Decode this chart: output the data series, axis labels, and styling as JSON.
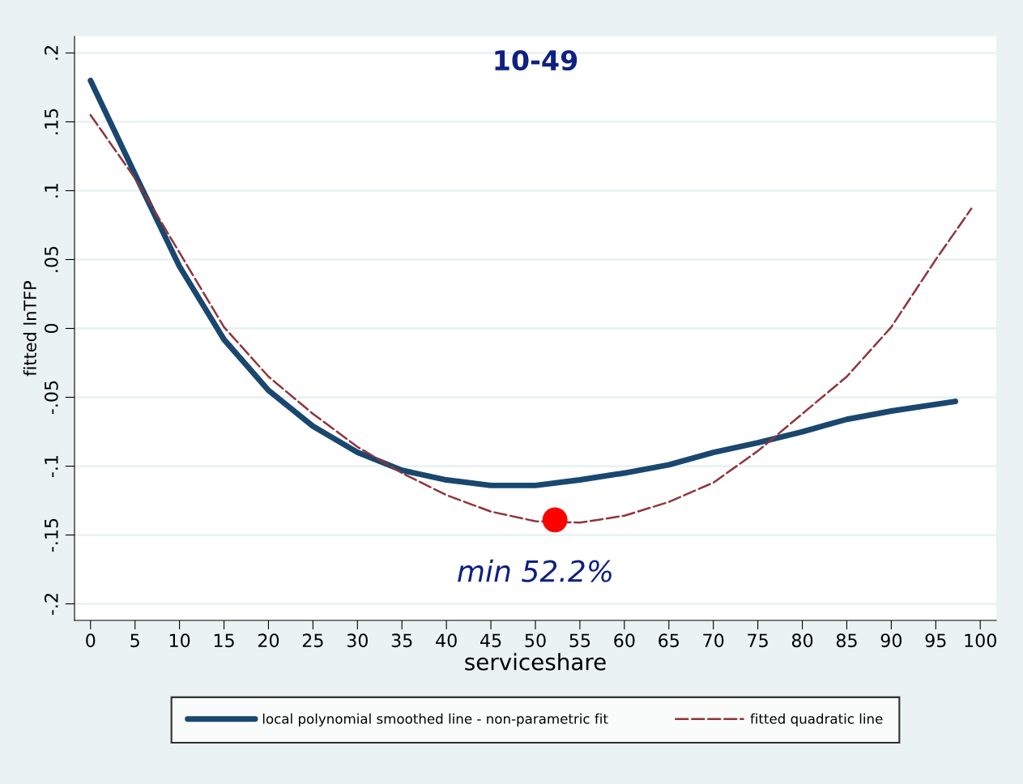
{
  "chart_data": {
    "type": "line",
    "title": "10-49",
    "xlabel": "serviceshare",
    "ylabel": "fitted lnTFP",
    "xlim": [
      -1.8,
      101.8
    ],
    "ylim": [
      -0.212,
      0.212
    ],
    "xticks": [
      0,
      5,
      10,
      15,
      20,
      25,
      30,
      35,
      40,
      45,
      50,
      55,
      60,
      65,
      70,
      75,
      80,
      85,
      90,
      95,
      100
    ],
    "yticks": [
      {
        "value": -0.2,
        "label": "-.2"
      },
      {
        "value": -0.15,
        "label": "-.15"
      },
      {
        "value": -0.1,
        "label": "-.1"
      },
      {
        "value": -0.05,
        "label": "-.05"
      },
      {
        "value": 0,
        "label": "0"
      },
      {
        "value": 0.05,
        "label": ".05"
      },
      {
        "value": 0.1,
        "label": ".1"
      },
      {
        "value": 0.15,
        "label": ".15"
      },
      {
        "value": 0.2,
        "label": ".2"
      }
    ],
    "grid": "y",
    "legend": "bottom",
    "series": [
      {
        "name": "local polynomial smoothed line - non-parametric fit",
        "color": "#1a476f",
        "line_style": "solid",
        "x": [
          0,
          5,
          10,
          15,
          20,
          25,
          30,
          35,
          40,
          45,
          50,
          55,
          60,
          65,
          70,
          75,
          80,
          85,
          90,
          97.2
        ],
        "values": [
          0.18,
          0.112,
          0.045,
          -0.008,
          -0.045,
          -0.071,
          -0.09,
          -0.103,
          -0.11,
          -0.114,
          -0.114,
          -0.11,
          -0.105,
          -0.099,
          -0.09,
          -0.083,
          -0.075,
          -0.066,
          -0.06,
          -0.053
        ]
      },
      {
        "name": "fitted quadratic line",
        "color": "#90353b",
        "line_style": "dashed",
        "x": [
          0,
          5,
          10,
          15,
          20,
          25,
          30,
          35,
          40,
          45,
          50,
          55,
          60,
          65,
          70,
          75,
          80,
          85,
          90,
          95,
          99
        ],
        "values": [
          0.155,
          0.109,
          0.055,
          0.001,
          -0.035,
          -0.062,
          -0.086,
          -0.105,
          -0.121,
          -0.133,
          -0.14,
          -0.141,
          -0.136,
          -0.126,
          -0.112,
          -0.089,
          -0.062,
          -0.035,
          0.001,
          0.05,
          0.087
        ]
      },
      {
        "type": "scatter",
        "color": "#ff0000",
        "marker": "circle",
        "x": [
          52.2
        ],
        "values": [
          -0.139
        ]
      }
    ],
    "annotations": [
      "min 52.2%"
    ]
  }
}
